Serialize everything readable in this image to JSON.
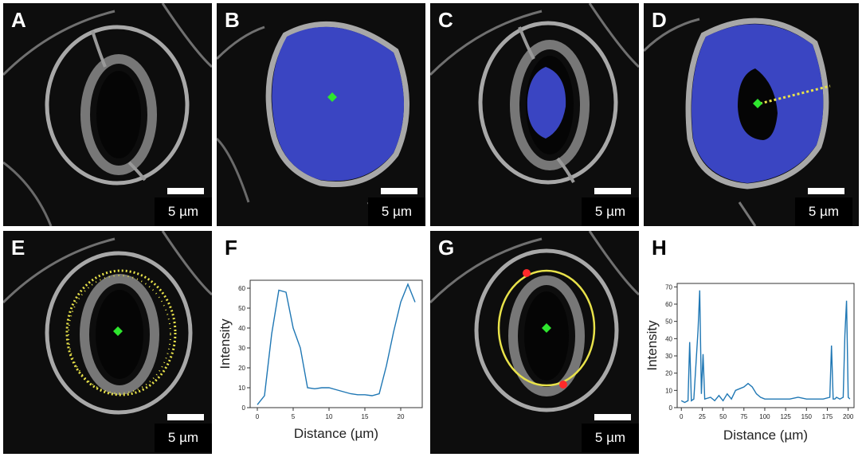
{
  "panels": [
    {
      "label": "A",
      "scale": "5 µm"
    },
    {
      "label": "B",
      "scale": "5 µm"
    },
    {
      "label": "C",
      "scale": "5 µm"
    },
    {
      "label": "D",
      "scale": "5 µm"
    },
    {
      "label": "E",
      "scale": "5 µm"
    },
    {
      "label": "F"
    },
    {
      "label": "G",
      "scale": "5 µm"
    },
    {
      "label": "H"
    }
  ],
  "colors": {
    "mask": "#3a45c2",
    "centroid": "#2ee62e",
    "contour": "#e8e24a",
    "endpoint": "#ff2a2a",
    "line": "#1f77b4"
  },
  "chart_data": [
    {
      "type": "line",
      "panel": "F",
      "xlabel": "Distance (µm)",
      "ylabel": "Intensity",
      "xlim": [
        -1,
        23
      ],
      "ylim": [
        0,
        64
      ],
      "xticks": [
        0,
        5,
        10,
        15,
        20
      ],
      "yticks": [
        0,
        10,
        20,
        30,
        40,
        50,
        60
      ],
      "series": [
        {
          "x": [
            0,
            1,
            2,
            3,
            4,
            5,
            6,
            7,
            8,
            9,
            10,
            11,
            12,
            13,
            14,
            15,
            16,
            17,
            18,
            19,
            20,
            21,
            22
          ],
          "values": [
            1.5,
            6,
            37,
            59,
            58,
            40,
            30,
            10,
            9.5,
            10,
            10,
            9,
            8,
            7,
            6.5,
            6.5,
            6,
            7,
            21,
            38,
            53,
            62,
            53
          ]
        }
      ]
    },
    {
      "type": "line",
      "panel": "H",
      "xlabel": "Distance (µm)",
      "ylabel": "Intensity",
      "xlim": [
        -5,
        207
      ],
      "ylim": [
        0,
        72
      ],
      "xticks": [
        0,
        25,
        50,
        75,
        100,
        125,
        150,
        175,
        200
      ],
      "yticks": [
        0,
        10,
        20,
        30,
        40,
        50,
        60,
        70
      ],
      "series": [
        {
          "x": [
            0,
            4,
            8,
            10,
            12,
            15,
            20,
            22,
            24,
            26,
            28,
            35,
            40,
            45,
            50,
            55,
            60,
            65,
            70,
            75,
            80,
            85,
            90,
            95,
            100,
            110,
            120,
            130,
            140,
            150,
            160,
            170,
            178,
            180,
            182,
            184,
            186,
            190,
            194,
            196,
            198,
            200,
            202
          ],
          "values": [
            4,
            3,
            4,
            38,
            4,
            5,
            45,
            68,
            8,
            31,
            5,
            6,
            4,
            7,
            4,
            8,
            5,
            10,
            11,
            12,
            14,
            12,
            8,
            6,
            5,
            5,
            5,
            5,
            6,
            5,
            5,
            5,
            6,
            36,
            5,
            5,
            6,
            5,
            6,
            42,
            62,
            6,
            5
          ]
        }
      ]
    }
  ]
}
